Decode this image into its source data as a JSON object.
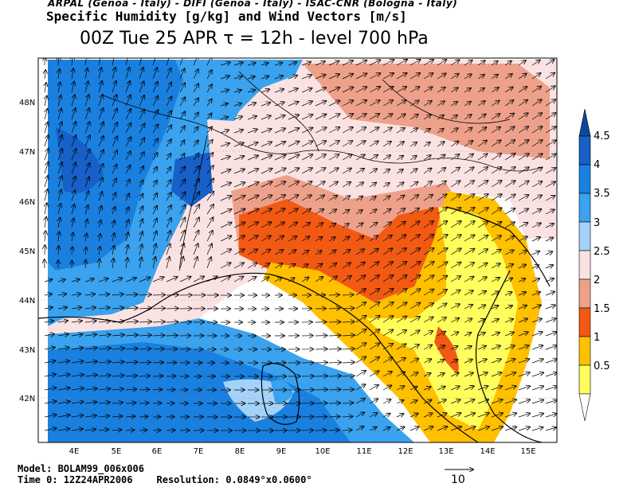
{
  "header": {
    "institutions": "ARPAL (Genoa - Italy)  -  DIFI (Genoa - Italy)  -  ISAC-CNR (Bologna - Italy)",
    "product": "Specific Humidity [g/kg] and Wind Vectors [m/s]",
    "forecast": "00Z Tue 25 APR  τ = 12h  -  level 700 hPa"
  },
  "axes": {
    "lon_labels": [
      "4E",
      "5E",
      "6E",
      "7E",
      "8E",
      "9E",
      "10E",
      "11E",
      "12E",
      "13E",
      "14E",
      "15E"
    ],
    "lat_labels": [
      "48N",
      "47N",
      "46N",
      "45N",
      "44N",
      "43N",
      "42N"
    ]
  },
  "colorbar": {
    "levels": [
      "4.5",
      "4",
      "3.5",
      "3",
      "2.5",
      "2",
      "1.5",
      "1",
      "0.5"
    ],
    "colors": [
      "#1660c8",
      "#1a80e0",
      "#3aa2ee",
      "#a4d2f8",
      "#fbe2e2",
      "#eea18a",
      "#f25a14",
      "#ffc000",
      "#fffe5c"
    ],
    "top_color": "#0c4a98",
    "bottom_color": "#ffffff"
  },
  "footer": {
    "model": "Model: BOLAM99_006x006",
    "time0": "Time 0: 12Z24APR2006",
    "resolution": "Resolution: 0.0849°x0.0600°"
  },
  "reference_vector": {
    "label": "10"
  }
}
